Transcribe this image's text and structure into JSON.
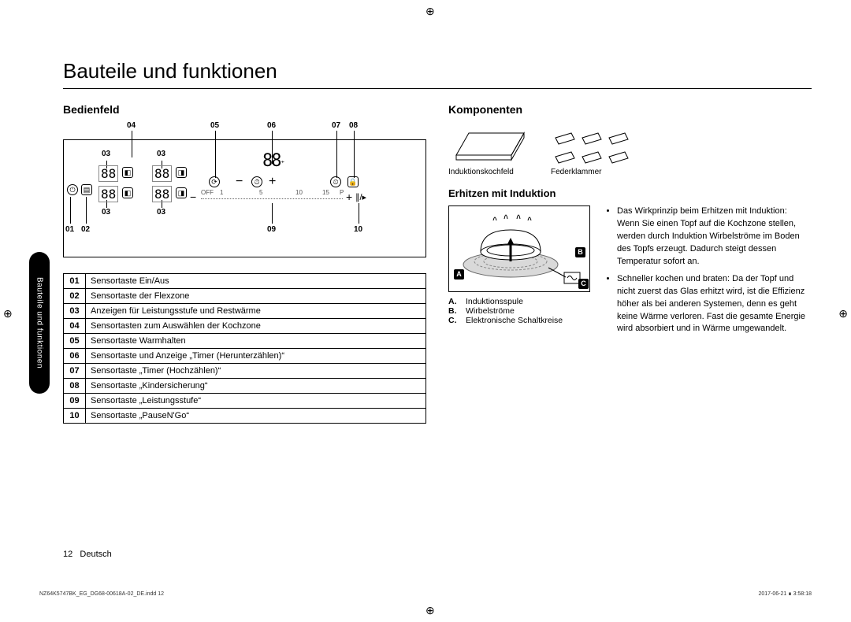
{
  "title": "Bauteile und funktionen",
  "sideTab": "Bauteile und funktionen",
  "sections": {
    "bedienfeld": "Bedienfeld",
    "komponenten": "Komponenten",
    "erhitzen": "Erhitzen mit Induktion"
  },
  "panelLabels": {
    "top": [
      "04",
      "05",
      "06",
      "07",
      "08"
    ],
    "mid": [
      "03",
      "03",
      "03",
      "03"
    ],
    "bottom": [
      "01",
      "02",
      "09",
      "10"
    ]
  },
  "sliderMarks": [
    "OFF",
    "1",
    "5",
    "10",
    "15",
    "P"
  ],
  "partsTable": [
    [
      "01",
      "Sensortaste Ein/Aus"
    ],
    [
      "02",
      "Sensortaste der Flexzone"
    ],
    [
      "03",
      "Anzeigen für Leistungsstufe und Restwärme"
    ],
    [
      "04",
      "Sensortasten zum Auswählen der Kochzone"
    ],
    [
      "05",
      "Sensortaste Warmhalten"
    ],
    [
      "06",
      "Sensortaste und Anzeige „Timer (Herunterzählen)“"
    ],
    [
      "07",
      "Sensortaste „Timer (Hochzählen)“"
    ],
    [
      "08",
      "Sensortaste „Kindersicherung“"
    ],
    [
      "09",
      "Sensortaste „Leistungsstufe“"
    ],
    [
      "10",
      "Sensortaste „PauseN'Go“"
    ]
  ],
  "components": {
    "left": "Induktionskochfeld",
    "right": "Federklammer"
  },
  "legend": [
    [
      "A.",
      "Induktionsspule"
    ],
    [
      "B.",
      "Wirbelströme"
    ],
    [
      "C.",
      "Elektronische Schaltkreise"
    ]
  ],
  "diagramLabels": {
    "A": "A",
    "B": "B",
    "C": "C"
  },
  "bullets": [
    "Das Wirkprinzip beim Erhitzen mit Induktion: Wenn Sie einen Topf auf die Kochzone stellen, werden durch Induktion Wirbelströme im Boden des Topfs erzeugt. Dadurch steigt dessen Temperatur sofort an.",
    "Schneller kochen und braten: Da der Topf und nicht zuerst das Glas erhitzt wird, ist die Effizienz höher als bei anderen Systemen, denn es geht keine Wärme verloren. Fast die gesamte Energie wird absorbiert und in Wärme umgewandelt."
  ],
  "footer": {
    "page": "12",
    "lang": "Deutsch"
  },
  "fineprint": {
    "left": "NZ64K5747BK_EG_DG68-00618A-02_DE.indd   12",
    "right": "2017-06-21   ∎ 3:58:18"
  },
  "colors": {
    "ink": "#000000",
    "bg": "#ffffff"
  }
}
